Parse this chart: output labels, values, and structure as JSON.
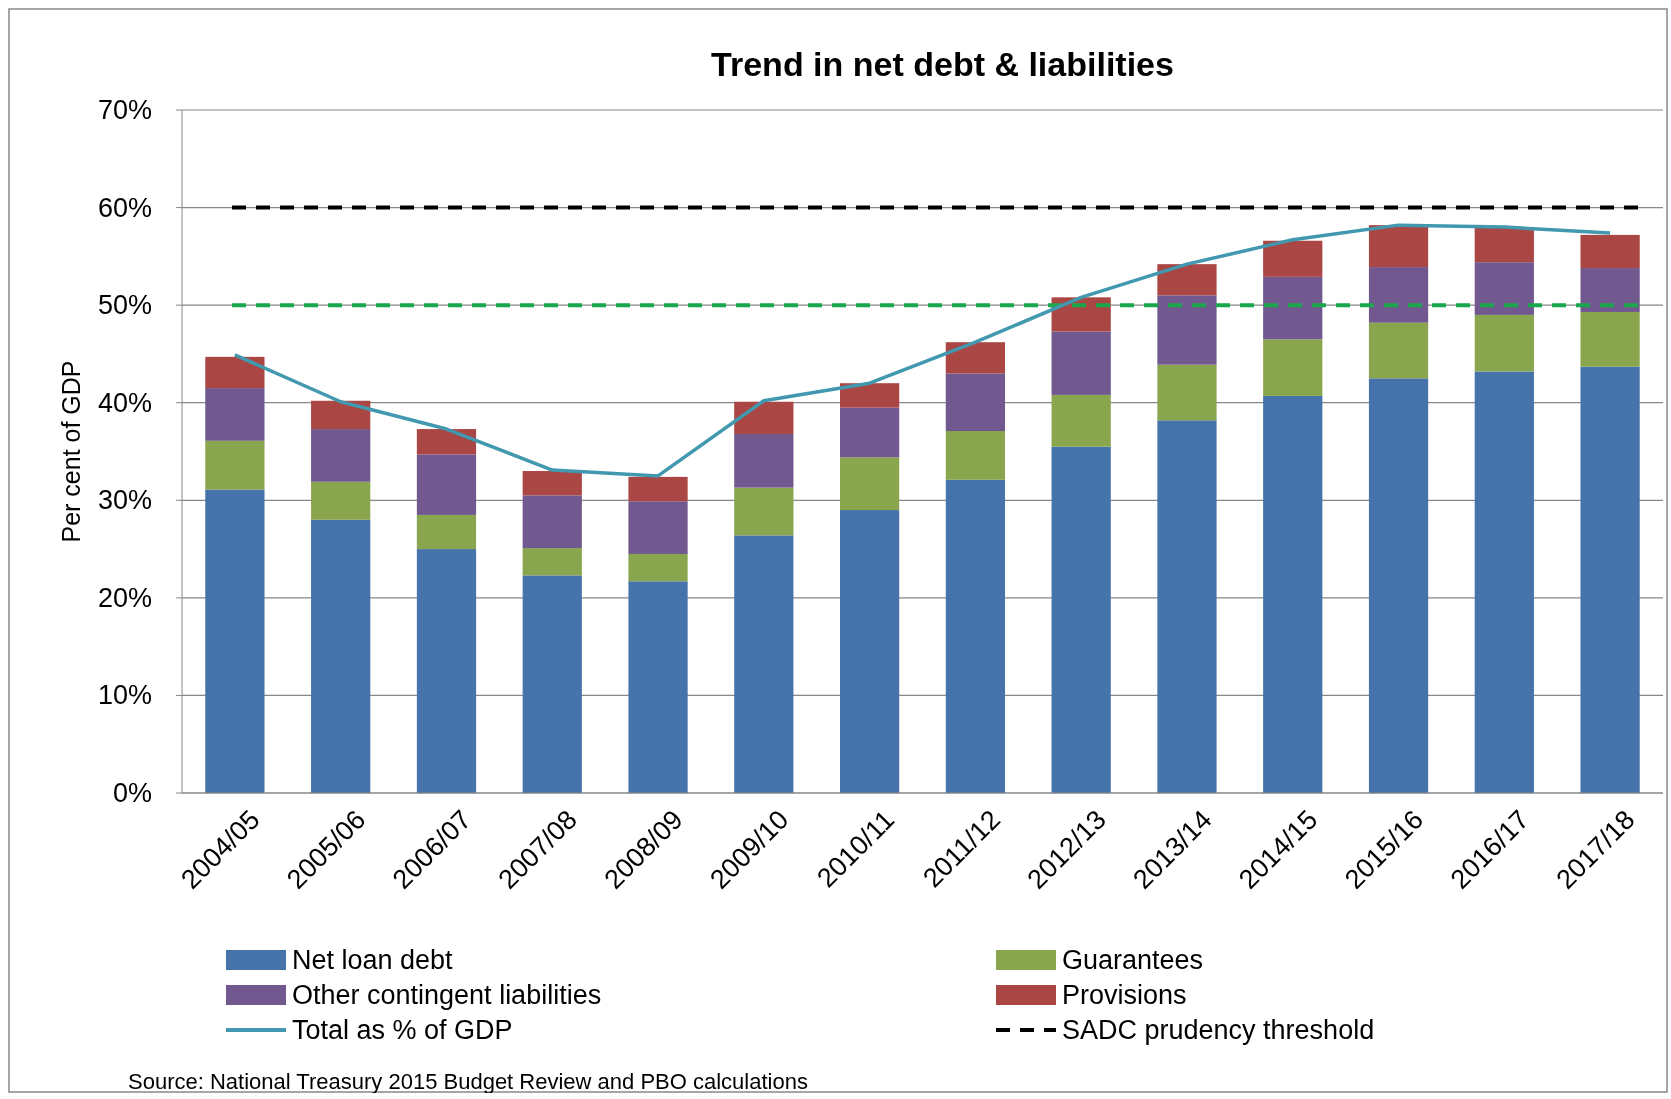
{
  "chart_data": {
    "type": "bar",
    "title": "Trend in net debt & liabilities",
    "ylabel": "Per cent of GDP",
    "stacked": true,
    "grid": "y",
    "legend": "bottom",
    "categories": [
      "2004/05",
      "2005/06",
      "2006/07",
      "2007/08",
      "2008/09",
      "2009/10",
      "2010/11",
      "2011/12",
      "2012/13",
      "2013/14",
      "2014/15",
      "2015/16",
      "2016/17",
      "2017/18"
    ],
    "series": [
      {
        "name": "Net loan debt",
        "color": "#4674aa",
        "values": [
          31.1,
          28.0,
          25.0,
          22.3,
          21.7,
          26.4,
          29.0,
          32.1,
          35.5,
          38.2,
          40.7,
          42.5,
          43.2,
          43.7
        ]
      },
      {
        "name": "Guarantees",
        "color": "#89a54e",
        "values": [
          5.0,
          3.9,
          3.5,
          2.8,
          2.8,
          4.9,
          5.4,
          5.0,
          5.3,
          5.7,
          5.8,
          5.7,
          5.8,
          5.6
        ]
      },
      {
        "name": "Other contingent liabilities",
        "color": "#71588f",
        "values": [
          5.4,
          5.4,
          6.2,
          5.4,
          5.4,
          5.5,
          5.1,
          5.9,
          6.5,
          7.1,
          6.4,
          5.7,
          5.4,
          4.5
        ]
      },
      {
        "name": "Provisions",
        "color": "#aa4643",
        "values": [
          3.2,
          2.9,
          2.6,
          2.5,
          2.5,
          3.3,
          2.5,
          3.2,
          3.5,
          3.2,
          3.7,
          4.3,
          3.6,
          3.4
        ]
      },
      {
        "name": "Total as % of GDP",
        "type": "line",
        "color": "#4198af",
        "values": [
          44.9,
          40.1,
          37.3,
          33.1,
          32.5,
          40.2,
          42.0,
          46.2,
          50.8,
          54.2,
          56.7,
          58.2,
          58.0,
          57.4
        ]
      }
    ],
    "ylim": [
      0,
      70
    ],
    "yticks": [
      {
        "value": 0,
        "label": "0%"
      },
      {
        "value": 10,
        "label": "10%"
      },
      {
        "value": 20,
        "label": "20%"
      },
      {
        "value": 30,
        "label": "30%"
      },
      {
        "value": 40,
        "label": "40%"
      },
      {
        "value": 50,
        "label": "50%"
      },
      {
        "value": 60,
        "label": "60%"
      },
      {
        "value": 70,
        "label": "70%"
      }
    ],
    "ref_lines": [
      {
        "axis": "y",
        "value": 60,
        "label": "SADC prudency threshold",
        "color": "#000000",
        "line_style": "dashed"
      },
      {
        "axis": "y",
        "value": 50,
        "label": null,
        "color": "#1aa64a",
        "line_style": "dashed"
      }
    ],
    "annotations": [
      "Source: National Treasury 2015  Budget Review and PBO calculations"
    ]
  }
}
